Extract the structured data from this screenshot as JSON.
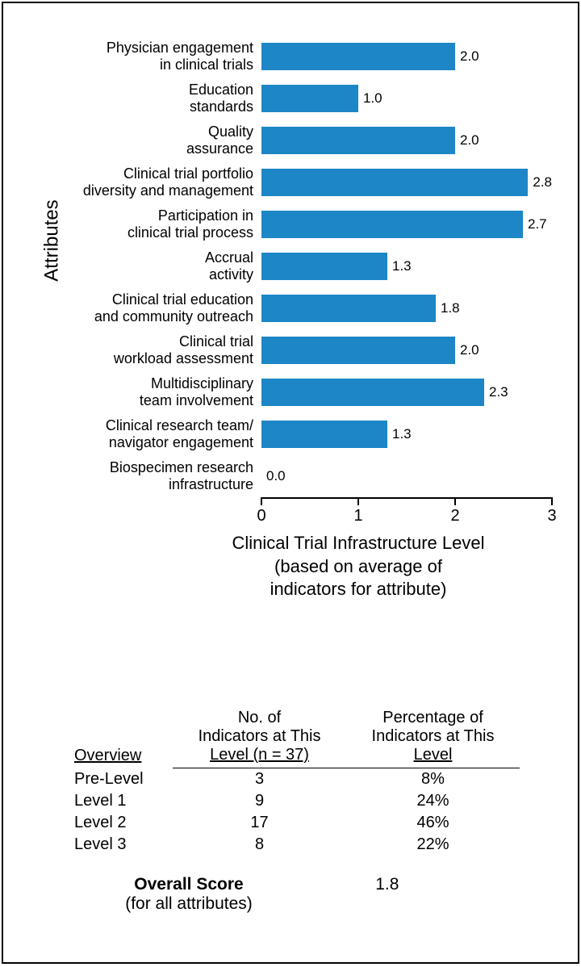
{
  "chart": {
    "type": "bar-horizontal",
    "ylabel": "Attributes",
    "xlabel": "Clinical Trial Infrastructure Level\n(based on average of\nindicators for attribute)",
    "xlim": [
      0,
      3
    ],
    "xticks": [
      0,
      1,
      2,
      3
    ],
    "bar_color": "#1c86c6",
    "background": "#ffffff",
    "axis_color": "#000000",
    "label_fontsize": 18,
    "value_fontsize": 17,
    "axis_title_fontsize": 22,
    "bars": [
      {
        "label": "Physician engagement\nin clinical trials",
        "value": 2.0,
        "text": "2.0"
      },
      {
        "label": "Education\nstandards",
        "value": 1.0,
        "text": "1.0"
      },
      {
        "label": "Quality\nassurance",
        "value": 2.0,
        "text": "2.0"
      },
      {
        "label": "Clinical trial portfolio\ndiversity and management",
        "value": 2.8,
        "text": "2.8"
      },
      {
        "label": "Participation in\nclinical trial process",
        "value": 2.7,
        "text": "2.7"
      },
      {
        "label": "Accrual\nactivity",
        "value": 1.3,
        "text": "1.3"
      },
      {
        "label": "Clinical trial education\nand community outreach",
        "value": 1.8,
        "text": "1.8"
      },
      {
        "label": "Clinical trial\nworkload assessment",
        "value": 2.0,
        "text": "2.0"
      },
      {
        "label": "Multidisciplinary\nteam involvement",
        "value": 2.3,
        "text": "2.3"
      },
      {
        "label": "Clinical research team/\nnavigator engagement",
        "value": 1.3,
        "text": "1.3"
      },
      {
        "label": "Biospecimen research\ninfrastructure",
        "value": 0.0,
        "text": "0.0"
      }
    ]
  },
  "table": {
    "columns": [
      "Overview",
      "No. of\nIndicators at This\nLevel (n = 37)",
      "Percentage of\nIndicators at This\nLevel"
    ],
    "rows": [
      [
        "Pre-Level",
        "3",
        "8%"
      ],
      [
        "Level 1",
        "9",
        "24%"
      ],
      [
        "Level 2",
        "17",
        "46%"
      ],
      [
        "Level 3",
        "8",
        "22%"
      ]
    ],
    "fontsize": 20
  },
  "overall": {
    "label_bold": "Overall Score",
    "label_sub": "(for all attributes)",
    "value": "1.8",
    "fontsize": 21
  }
}
